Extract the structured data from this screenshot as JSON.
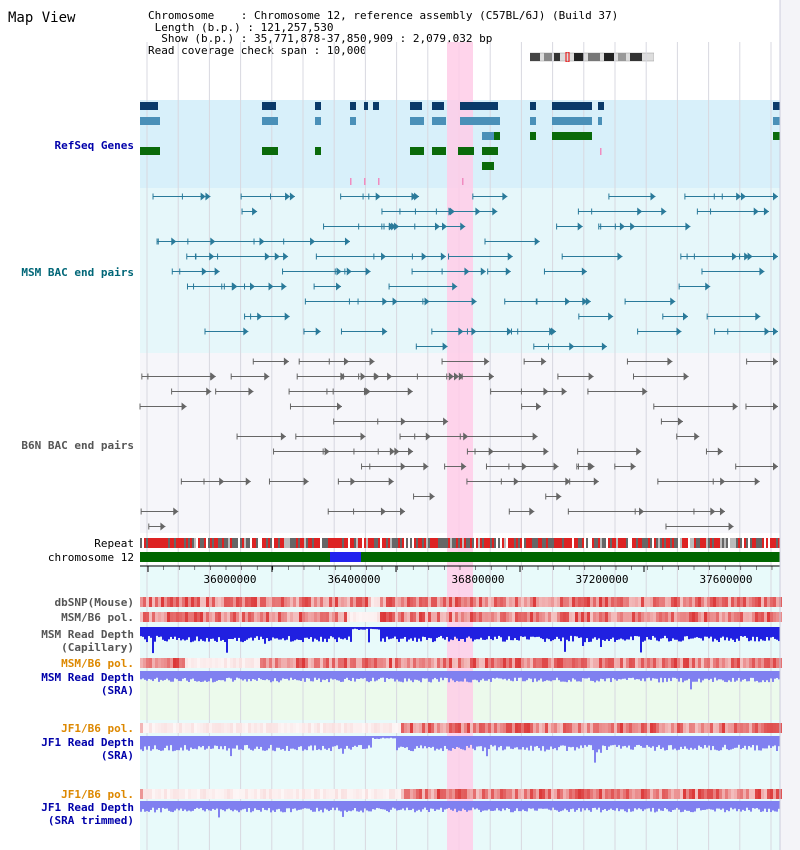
{
  "app": {
    "title": "Map View"
  },
  "info": {
    "chromosome_key": "Chromosome",
    "chromosome_value": "Chromosome 12, reference assembly (C57BL/6J) (Build 37)",
    "length_key": "Length (b.p.)",
    "length_value": "121,257,530",
    "show_key": "Show (b.p.)",
    "show_value": "35,771,878-37,850,909 : 2,079,032 bp",
    "span_key": "Read coverage check span",
    "span_value": "10,000"
  },
  "tracks": {
    "refseq": "RefSeq Genes",
    "msm_bac": "MSM BAC end pairs",
    "b6n_bac": "B6N BAC end pairs",
    "repeat": "Repeat",
    "chromosome": "chromosome 12",
    "dbsnp": "dbSNP(Mouse)",
    "msm_b6_pol": "MSM/B6 pol.",
    "msm_depth_line1": "MSM Read Depth",
    "msm_depth_line2": "(Capillary)",
    "msm_b6_pol_sra": "MSM/B6 pol.",
    "msm_depth_sra_line1": "MSM Read Depth",
    "msm_depth_sra_line2": "(SRA)",
    "jf1_b6_pol": "JF1/B6 pol.",
    "jf1_depth_line1": "JF1 Read Depth",
    "jf1_depth_line2": "(SRA)",
    "jf1_b6_pol_trim": "JF1/B6 pol.",
    "jf1_depth_trim_line1": "JF1 Read Depth",
    "jf1_depth_trim_line2": "(SRA trimmed)"
  },
  "axis": {
    "ticks": [
      "36000000",
      "36400000",
      "36800000",
      "37200000",
      "37600000"
    ]
  },
  "colors": {
    "refseq_bg": "#d8f0fa",
    "msm_bg": "#e6f7fa",
    "highlight": "#ffcce8",
    "gene_dark": "#0a3a6a",
    "gene_mid": "#4a90b8",
    "gene_green": "#0a6a0a",
    "bac_msm": "#2a7a9a",
    "bac_b6n": "#666666",
    "depth_blue": "#2020e0",
    "depth_light": "#8080f0",
    "pol_red": "#e03030",
    "chrom_green": "#006600",
    "label_blue": "#0000aa",
    "label_teal": "#006677",
    "label_orange": "#dd8800",
    "label_gray": "#555555"
  }
}
